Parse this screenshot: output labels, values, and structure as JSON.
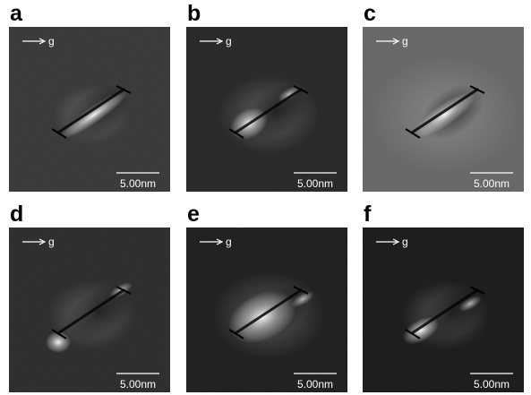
{
  "panels": [
    {
      "label": "a",
      "direction": "g",
      "scale_bar": "5.00nm"
    },
    {
      "label": "b",
      "direction": "g",
      "scale_bar": "5.00nm"
    },
    {
      "label": "c",
      "direction": "g",
      "scale_bar": "5.00nm"
    },
    {
      "label": "d",
      "direction": "g",
      "scale_bar": "5.00nm"
    },
    {
      "label": "e",
      "direction": "g",
      "scale_bar": "5.00nm"
    },
    {
      "label": "f",
      "direction": "g",
      "scale_bar": "5.00nm"
    }
  ]
}
